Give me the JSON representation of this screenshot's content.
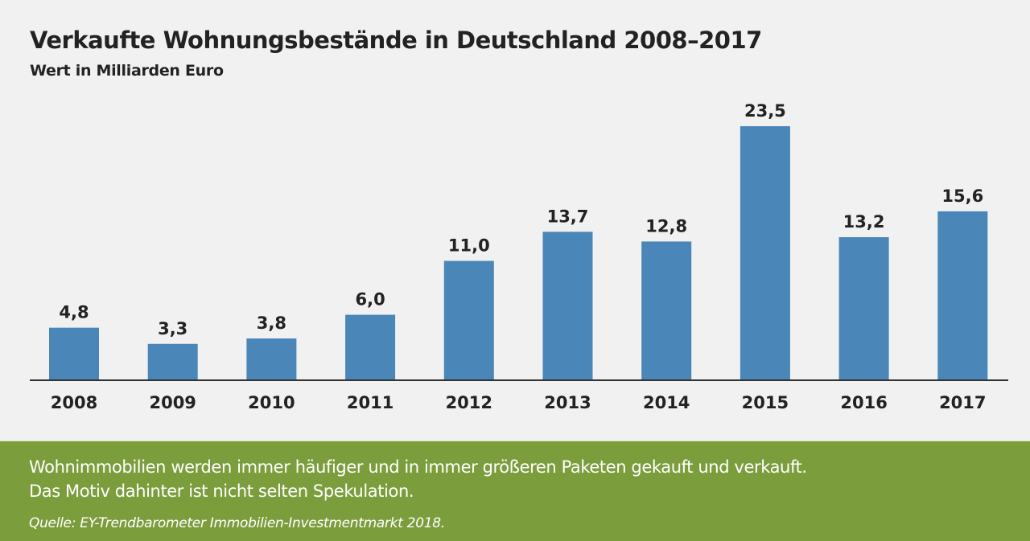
{
  "header": {
    "title": "Verkaufte Wohnungsbestände in Deutschland 2008–2017",
    "subtitle": "Wert in Milliarden Euro"
  },
  "footer": {
    "caption_line1": "Wohnimmobilien werden immer häufiger und in immer größeren Paketen gekauft und verkauft.",
    "caption_line2": "Das Motiv dahinter ist nicht selten Spekulation.",
    "source": "Quelle: EY-Trendbarometer Immobilien-Investmentmarkt 2018."
  },
  "colors": {
    "bar": "#4a86b8",
    "footer_bg": "#7c9d3c",
    "text": "#222222"
  },
  "chart_data": {
    "type": "bar",
    "title": "Verkaufte Wohnungsbestände in Deutschland 2008–2017",
    "subtitle": "Wert in Milliarden Euro",
    "xlabel": "",
    "ylabel": "Wert in Milliarden Euro",
    "categories": [
      "2008",
      "2009",
      "2010",
      "2011",
      "2012",
      "2013",
      "2014",
      "2015",
      "2016",
      "2017"
    ],
    "values": [
      4.8,
      3.3,
      3.8,
      6.0,
      11.0,
      13.7,
      12.8,
      23.5,
      13.2,
      15.6
    ],
    "labels": [
      "4,8",
      "3,3",
      "3,8",
      "6,0",
      "11,0",
      "13,7",
      "12,8",
      "23,5",
      "13,2",
      "15,6"
    ],
    "ylim": [
      0,
      23.5
    ],
    "grid": false,
    "legend": "none"
  }
}
